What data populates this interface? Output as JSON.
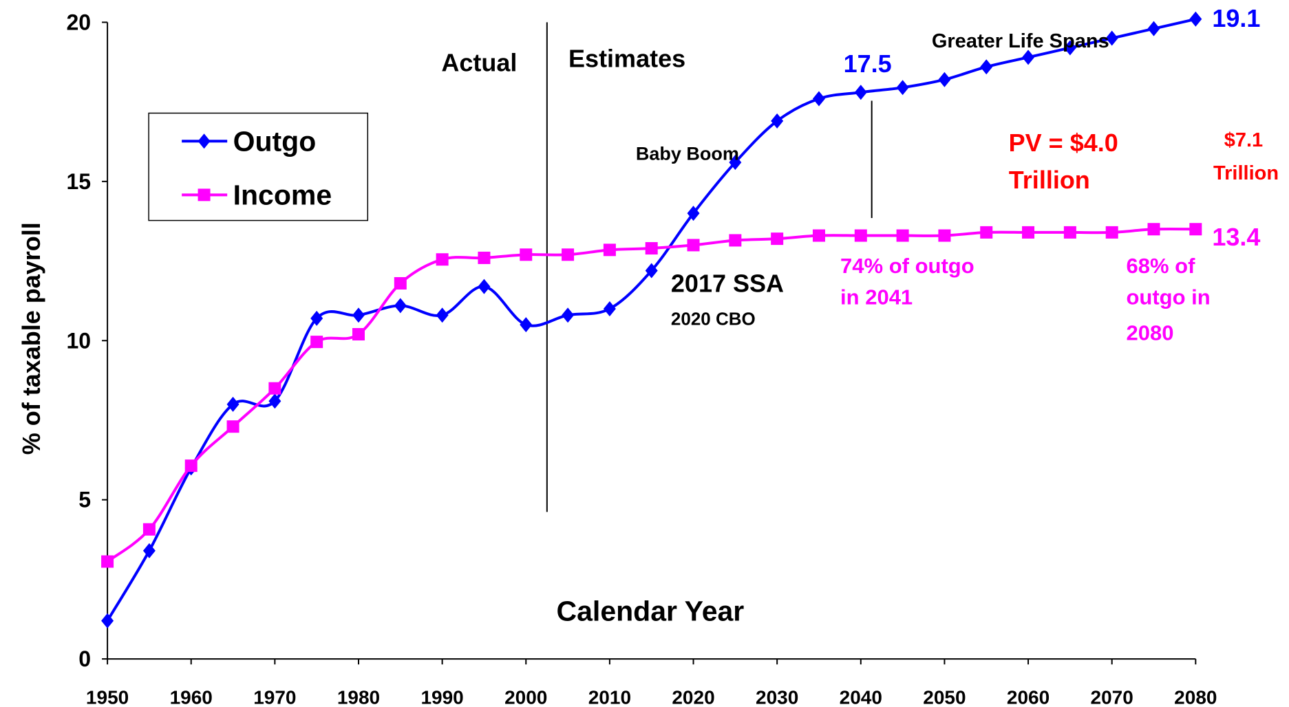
{
  "chart_data": {
    "type": "line",
    "xlabel": "Calendar Year",
    "ylabel": "% of taxable payroll",
    "x": [
      1950,
      1955,
      1960,
      1965,
      1970,
      1975,
      1980,
      1985,
      1990,
      1995,
      2000,
      2005,
      2010,
      2015,
      2020,
      2025,
      2030,
      2035,
      2040,
      2045,
      2050,
      2055,
      2060,
      2065,
      2070,
      2075,
      2080
    ],
    "series": [
      {
        "name": "Outgo",
        "color": "#0000ff",
        "marker": "diamond",
        "values": [
          1.2,
          3.4,
          6.0,
          8.0,
          8.1,
          10.7,
          10.8,
          11.1,
          10.8,
          11.7,
          10.5,
          10.8,
          11.0,
          12.2,
          14.0,
          15.6,
          16.9,
          17.6,
          17.8,
          17.95,
          18.2,
          18.6,
          18.9,
          19.2,
          19.5,
          19.8,
          20.1
        ]
      },
      {
        "name": "Income",
        "color": "#ff00ff",
        "marker": "square",
        "values": [
          3.06,
          4.07,
          6.07,
          7.3,
          8.5,
          9.96,
          10.2,
          11.8,
          12.55,
          12.6,
          12.7,
          12.7,
          12.85,
          12.9,
          13.0,
          13.15,
          13.2,
          13.3,
          13.3,
          13.3,
          13.3,
          13.4,
          13.4,
          13.4,
          13.4,
          13.5,
          13.5
        ]
      }
    ],
    "xlim": [
      1950,
      2080
    ],
    "xticks": [
      1950,
      1960,
      1970,
      1980,
      1990,
      2000,
      2010,
      2020,
      2030,
      2040,
      2050,
      2060,
      2070,
      2080
    ],
    "ylim": [
      0,
      20
    ],
    "yticks": [
      0,
      5,
      10,
      15,
      20
    ],
    "legend": "upper left",
    "annotations": [
      "Actual",
      "Estimates",
      "17.5",
      "Greater Life Spans",
      "19.1",
      "Baby Boom",
      "PV = $4.0",
      "Trillion",
      "$7.1",
      "Trillion",
      "13.4",
      "74% of outgo",
      "in 2041",
      "2017 SSA",
      "2020 CBO",
      "68% of",
      "outgo in",
      "2080"
    ]
  }
}
